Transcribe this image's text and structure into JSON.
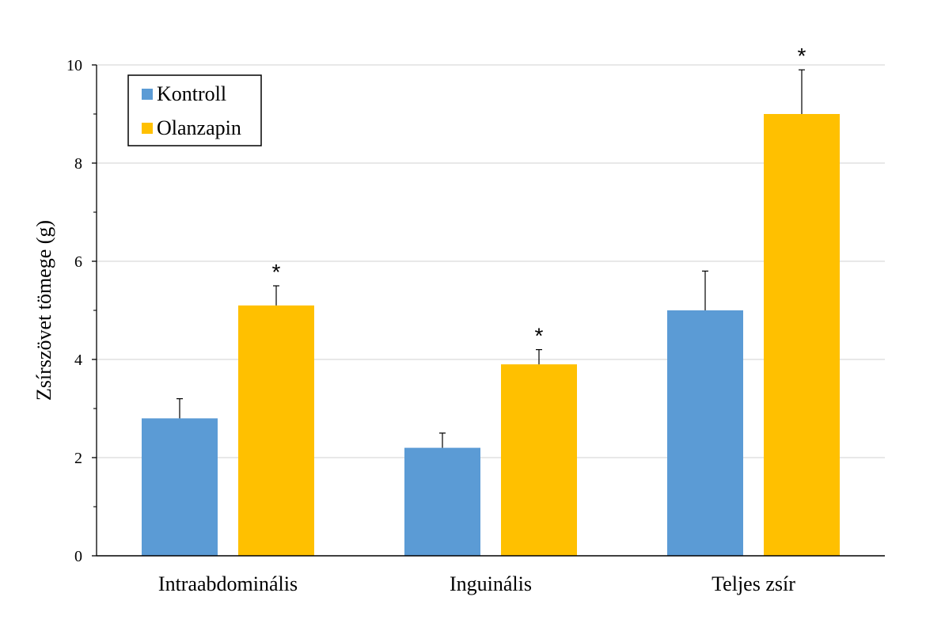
{
  "chart_data": {
    "type": "bar",
    "ylabel": "Zsírszövet tömege (g)",
    "xlabel": "",
    "ylim": [
      0,
      10
    ],
    "yticks": [
      0,
      2,
      4,
      6,
      8,
      10
    ],
    "ytick_labels": [
      "0",
      "2",
      "4",
      "6",
      "8",
      "10"
    ],
    "categories": [
      "Intraabdominális",
      "Inguinális",
      "Teljes zsír"
    ],
    "series": [
      {
        "name": "Kontroll",
        "color": "#5b9bd5",
        "values": [
          2.8,
          2.2,
          5.0
        ],
        "error": [
          0.4,
          0.3,
          0.8
        ],
        "significance": [
          "",
          "",
          ""
        ]
      },
      {
        "name": "Olanzapin",
        "color": "#ffc000",
        "values": [
          5.1,
          3.9,
          9.0
        ],
        "error": [
          0.4,
          0.3,
          0.9
        ],
        "significance": [
          "*",
          "*",
          "*"
        ]
      }
    ],
    "grid": true,
    "legend_position": "top-left"
  }
}
